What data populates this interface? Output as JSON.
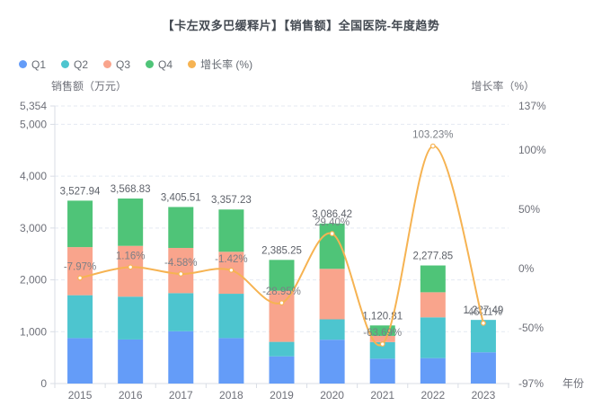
{
  "title": "【卡左双多巴缓释片】【销售额】全国医院-年度趋势",
  "legend": {
    "items": [
      {
        "label": "Q1",
        "color": "#649cf8"
      },
      {
        "label": "Q2",
        "color": "#4dc5cf"
      },
      {
        "label": "Q3",
        "color": "#f9a48c"
      },
      {
        "label": "Q4",
        "color": "#4fc478"
      },
      {
        "label": "增长率 (%)",
        "color": "#f6b352"
      }
    ]
  },
  "chart_data": {
    "type": "bar",
    "subtype": "stacked-bars-with-line",
    "title": "【卡左双多巴缓释片】【销售额】全国医院-年度趋势",
    "categories": [
      "2015",
      "2016",
      "2017",
      "2018",
      "2019",
      "2020",
      "2021",
      "2022",
      "2023"
    ],
    "series": [
      {
        "name": "Q1",
        "type": "bar",
        "color": "#649cf8",
        "values": [
          877,
          850,
          1009,
          877,
          525,
          846,
          480,
          491,
          603
        ]
      },
      {
        "name": "Q2",
        "type": "bar",
        "color": "#4dc5cf",
        "values": [
          827,
          826,
          735,
          855,
          279,
          393,
          320,
          786,
          624.49
        ]
      },
      {
        "name": "Q3",
        "type": "bar",
        "color": "#f9a48c",
        "values": [
          928,
          980,
          872,
          810,
          986,
          974,
          120,
          484,
          0
        ]
      },
      {
        "name": "Q4",
        "type": "bar",
        "color": "#4fc478",
        "values": [
          895.94,
          912.83,
          789.51,
          815.23,
          595.25,
          873.42,
          200.81,
          516.85,
          0
        ]
      },
      {
        "name": "增长率 (%)",
        "type": "line",
        "axis": "right",
        "color": "#f6b352",
        "values": [
          -7.97,
          1.16,
          -4.58,
          -1.42,
          -28.95,
          29.4,
          -63.69,
          103.23,
          -46.11
        ]
      }
    ],
    "bar_totals": [
      "3,527.94",
      "3,568.83",
      "3,405.51",
      "3,357.23",
      "2,385.25",
      "3,086.42",
      "1,120.81",
      "2,277.85",
      "1,227.49"
    ],
    "growth_labels": [
      "-7.97%",
      "1.16%",
      "-4.58%",
      "-1.42%",
      "-28.95%",
      "29.40%",
      "-63.69%",
      "103.23%",
      "-46.11%"
    ],
    "y_left": {
      "name": "销售额（万元）",
      "min": 0,
      "max": 5354,
      "ticks": [
        0,
        1000,
        2000,
        3000,
        4000,
        5000,
        5354
      ],
      "tick_labels": [
        "0",
        "1,000",
        "2,000",
        "3,000",
        "4,000",
        "5,000",
        "5,354"
      ]
    },
    "y_right": {
      "name": "增长率（%）",
      "min": -97,
      "max": 137,
      "ticks": [
        -97,
        -50,
        0,
        50,
        100,
        137
      ],
      "tick_labels": [
        "-97%",
        "-50%",
        "0%",
        "50%",
        "100%",
        "137%"
      ]
    },
    "xlabel": "年份",
    "legend_position": "top-left",
    "grid": "horizontal-dashed",
    "colors": {
      "grid_line": "#e4e9f2",
      "axis_line": "#d9dde5",
      "tick_text": "#6e7079",
      "title_text": "#444a52"
    }
  }
}
